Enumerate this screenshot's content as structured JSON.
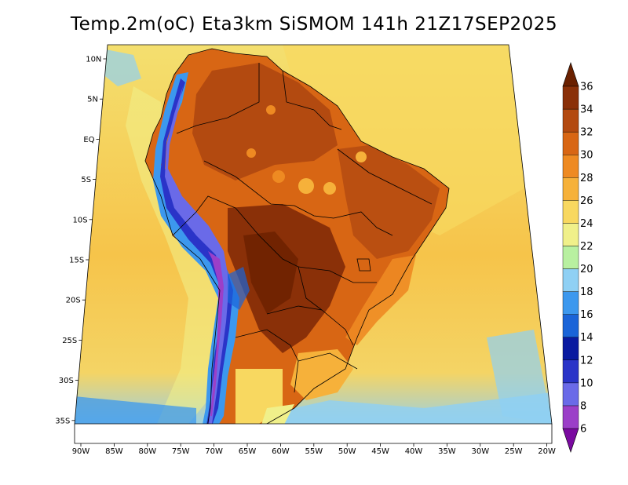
{
  "title": "Temp.2m(oC) Eta3km SiSMOM 141h 21Z17SEP2025",
  "map": {
    "variable": "2 m temperature",
    "unit": "oC",
    "lat_labels": [
      "10N",
      "5N",
      "EQ",
      "5S",
      "10S",
      "15S",
      "20S",
      "25S",
      "30S",
      "35S"
    ],
    "lon_labels": [
      "90W",
      "85W",
      "80W",
      "75W",
      "70W",
      "65W",
      "60W",
      "55W",
      "50W",
      "45W",
      "40W",
      "35W",
      "30W",
      "25W",
      "20W"
    ]
  },
  "colorbar": {
    "levels": [
      "6",
      "8",
      "10",
      "12",
      "14",
      "16",
      "18",
      "20",
      "22",
      "24",
      "26",
      "28",
      "30",
      "32",
      "34",
      "36"
    ],
    "colors": [
      "#7a0aa0",
      "#9b3fc8",
      "#6a6ae8",
      "#2a34c8",
      "#0a1aa0",
      "#1a64d8",
      "#3c98ee",
      "#8fd0f4",
      "#b8f0a0",
      "#f0f08a",
      "#f8d860",
      "#f6b13a",
      "#ee8a22",
      "#d86614",
      "#b34a10",
      "#8a3008",
      "#6a2000"
    ]
  }
}
